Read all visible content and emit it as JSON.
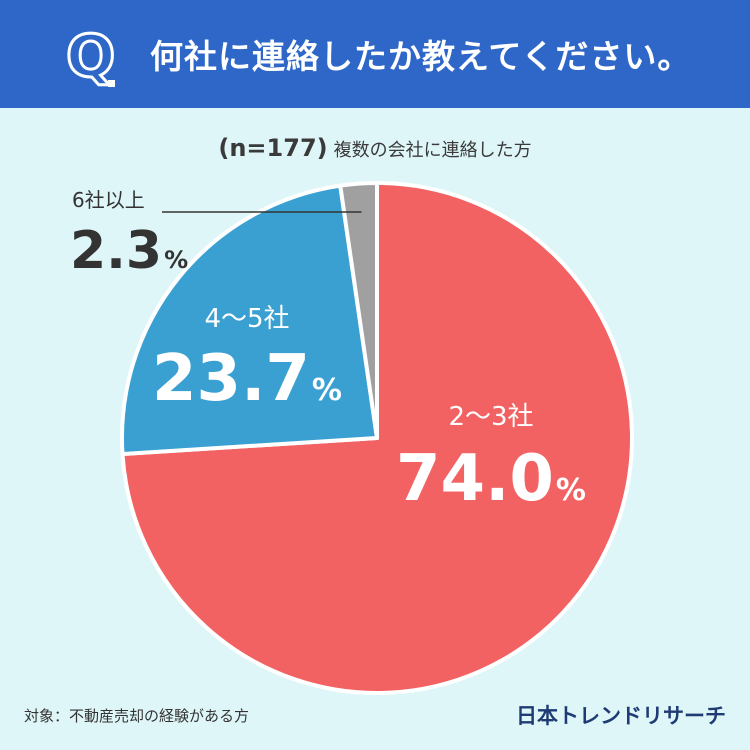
{
  "header": {
    "q_letter": "Q",
    "title": "何社に連絡したか教えてください。",
    "colors": {
      "bar": "#2f67c8",
      "text": "#ffffff"
    }
  },
  "subtitle": {
    "n_text": "(n=177)",
    "description": "複数の会社に連絡した方"
  },
  "chart_data": {
    "type": "pie",
    "start_angle_deg": 0,
    "direction": "clockwise",
    "slices": [
      {
        "label": "2〜3社",
        "value": 74.0,
        "value_text": "74.0",
        "unit": "%",
        "color": "#f26262"
      },
      {
        "label": "4〜5社",
        "value": 23.7,
        "value_text": "23.7",
        "unit": "%",
        "color": "#3aa0d2"
      },
      {
        "label": "6社以上",
        "value": 2.3,
        "value_text": "2.3",
        "unit": "%",
        "color": "#a0a0a0"
      }
    ]
  },
  "footer": {
    "note": "対象：不動産売却の経験がある方",
    "brand": "日本トレンドリサーチ"
  }
}
